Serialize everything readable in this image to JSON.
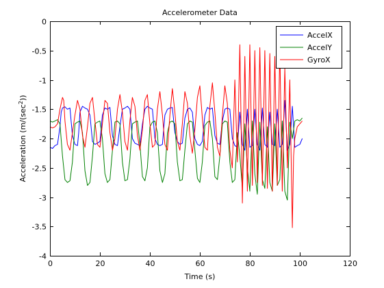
{
  "chart_data": {
    "type": "line",
    "title": "Accelerometer Data",
    "xlabel": "Time (s)",
    "ylabel_main": "Acceleration (m/(sec",
    "ylabel_sup": "2",
    "ylabel_end": "))",
    "xlim": [
      0,
      120
    ],
    "ylim": [
      -4,
      0
    ],
    "xticks": [
      0,
      20,
      40,
      60,
      80,
      100,
      120
    ],
    "yticks": [
      0,
      -0.5,
      -1,
      -1.5,
      -2,
      -2.5,
      -3,
      -3.5,
      -4
    ],
    "ytick_labels": [
      "0",
      "-0.5",
      "-1",
      "-1.5",
      "-2",
      "-2.5",
      "-3",
      "-3.5",
      "-4"
    ],
    "grid": false,
    "legend_position": "top-right",
    "series": [
      {
        "name": "AccelX",
        "color": "#0000ff",
        "x": [
          0.0,
          1.0,
          2.0,
          3.0,
          4.0,
          4.5,
          5.0,
          6.0,
          7.0,
          8.0,
          9.0,
          10.0,
          11.0,
          11.5,
          12.0,
          13.0,
          14.0,
          15.0,
          16.0,
          17.0,
          18.0,
          19.0,
          20.0,
          21.0,
          22.0,
          23.0,
          24.0,
          25.0,
          26.0,
          27.0,
          28.0,
          29.0,
          30.0,
          31.0,
          32.0,
          33.0,
          34.0,
          35.0,
          36.0,
          37.0,
          38.0,
          39.0,
          40.0,
          41.0,
          42.0,
          43.0,
          44.0,
          45.0,
          46.0,
          47.0,
          48.0,
          49.0,
          50.0,
          51.0,
          52.0,
          53.0,
          54.0,
          55.0,
          56.0,
          57.0,
          58.0,
          59.0,
          60.0,
          61.0,
          62.0,
          63.0,
          64.0,
          65.0,
          66.0,
          67.0,
          68.0,
          69.0,
          70.0,
          71.0,
          72.0,
          73.0,
          74.0,
          75.0,
          76.0,
          77.0,
          78.0,
          79.0,
          80.0,
          81.0,
          82.0,
          83.0,
          84.0,
          85.0,
          86.0,
          87.0,
          88.0,
          89.0,
          90.0,
          91.0,
          92.0,
          93.0,
          94.0,
          95.0,
          96.0,
          97.0,
          98.0,
          99.0,
          100.0,
          101.0
        ],
        "y": [
          -2.15,
          -2.17,
          -2.12,
          -2.1,
          -1.8,
          -1.55,
          -1.48,
          -1.46,
          -1.5,
          -1.48,
          -1.95,
          -2.1,
          -2.12,
          -1.9,
          -1.55,
          -1.45,
          -1.48,
          -1.5,
          -1.6,
          -2.05,
          -2.1,
          -2.08,
          -2.05,
          -1.6,
          -1.48,
          -1.5,
          -1.47,
          -1.95,
          -2.1,
          -2.12,
          -1.8,
          -1.5,
          -1.48,
          -1.45,
          -1.5,
          -2.0,
          -2.08,
          -2.1,
          -2.12,
          -1.75,
          -1.5,
          -1.45,
          -1.48,
          -1.5,
          -2.0,
          -2.1,
          -2.12,
          -2.1,
          -1.6,
          -1.5,
          -1.48,
          -1.47,
          -1.9,
          -2.05,
          -2.1,
          -2.08,
          -1.65,
          -1.5,
          -1.48,
          -1.55,
          -2.0,
          -2.1,
          -2.12,
          -2.05,
          -1.6,
          -1.47,
          -1.5,
          -1.48,
          -1.95,
          -2.08,
          -2.1,
          -1.7,
          -1.5,
          -1.48,
          -1.5,
          -2.0,
          -2.12,
          -2.15,
          -1.55,
          -2.1,
          -2.2,
          -1.5,
          -2.15,
          -2.12,
          -1.5,
          -2.1,
          -2.2,
          -1.48,
          -2.1,
          -2.15,
          -1.55,
          -2.1,
          -2.12,
          -1.5,
          -2.15,
          -2.1,
          -1.35,
          -2.2,
          -2.1,
          -1.45,
          -2.15,
          -2.12,
          -2.1,
          -2.0
        ],
        "note_hint": null
      },
      {
        "name": "AccelY",
        "color": "#008000",
        "x": [
          0.0,
          1.0,
          2.0,
          3.0,
          4.0,
          5.0,
          6.0,
          7.0,
          8.0,
          9.0,
          10.0,
          11.0,
          12.0,
          13.0,
          14.0,
          15.0,
          16.0,
          17.0,
          18.0,
          19.0,
          20.0,
          21.0,
          22.0,
          23.0,
          24.0,
          25.0,
          26.0,
          27.0,
          28.0,
          29.0,
          30.0,
          31.0,
          32.0,
          33.0,
          34.0,
          35.0,
          36.0,
          37.0,
          38.0,
          39.0,
          40.0,
          41.0,
          42.0,
          43.0,
          44.0,
          45.0,
          46.0,
          47.0,
          48.0,
          49.0,
          50.0,
          51.0,
          52.0,
          53.0,
          54.0,
          55.0,
          56.0,
          57.0,
          58.0,
          59.0,
          60.0,
          61.0,
          62.0,
          63.0,
          64.0,
          65.0,
          66.0,
          67.0,
          68.0,
          69.0,
          70.0,
          71.0,
          72.0,
          73.0,
          74.0,
          75.0,
          76.0,
          77.0,
          78.0,
          79.0,
          80.0,
          81.0,
          82.0,
          83.0,
          84.0,
          85.0,
          86.0,
          87.0,
          88.0,
          89.0,
          90.0,
          91.0,
          92.0,
          93.0,
          94.0,
          95.0,
          96.0,
          97.0,
          98.0,
          99.0,
          100.0,
          101.0
        ],
        "y": [
          -1.7,
          -1.72,
          -1.7,
          -1.68,
          -1.75,
          -2.3,
          -2.7,
          -2.75,
          -2.72,
          -2.4,
          -1.75,
          -1.72,
          -1.7,
          -1.9,
          -2.55,
          -2.8,
          -2.75,
          -2.3,
          -1.75,
          -1.72,
          -1.7,
          -2.0,
          -2.6,
          -2.75,
          -2.7,
          -2.2,
          -1.72,
          -1.7,
          -1.75,
          -2.4,
          -2.72,
          -2.7,
          -2.35,
          -1.75,
          -1.72,
          -1.7,
          -2.1,
          -2.65,
          -2.72,
          -2.5,
          -1.8,
          -1.72,
          -1.7,
          -1.9,
          -2.55,
          -2.75,
          -2.6,
          -1.9,
          -1.72,
          -1.7,
          -1.75,
          -2.4,
          -2.72,
          -2.7,
          -2.2,
          -1.75,
          -1.7,
          -1.72,
          -2.2,
          -2.68,
          -2.75,
          -2.4,
          -1.78,
          -1.72,
          -1.7,
          -2.0,
          -2.65,
          -2.7,
          -2.3,
          -1.75,
          -1.7,
          -1.72,
          -2.4,
          -2.75,
          -2.7,
          -1.9,
          -2.3,
          -2.85,
          -1.75,
          -2.5,
          -2.9,
          -1.7,
          -2.6,
          -2.95,
          -1.72,
          -2.7,
          -2.85,
          -1.8,
          -2.75,
          -2.9,
          -1.75,
          -2.8,
          -2.7,
          -1.7,
          -2.9,
          -3.05,
          -1.72,
          -2.0,
          -1.7,
          -1.68,
          -1.7,
          -1.65
        ],
        "note_hint": null
      },
      {
        "name": "GyroX",
        "color": "#ff0000",
        "x": [
          0.0,
          1.0,
          2.0,
          3.0,
          4.0,
          5.0,
          5.5,
          6.0,
          7.0,
          8.0,
          9.0,
          10.0,
          11.0,
          12.0,
          13.0,
          14.0,
          15.0,
          16.0,
          17.0,
          18.0,
          19.0,
          20.0,
          21.0,
          22.0,
          23.0,
          24.0,
          25.0,
          26.0,
          27.0,
          28.0,
          29.0,
          30.0,
          31.0,
          32.0,
          33.0,
          34.0,
          35.0,
          36.0,
          37.0,
          38.0,
          39.0,
          40.0,
          41.0,
          42.0,
          43.0,
          44.0,
          45.0,
          46.0,
          47.0,
          48.0,
          49.0,
          50.0,
          51.0,
          52.0,
          53.0,
          54.0,
          55.0,
          56.0,
          57.0,
          58.0,
          59.0,
          60.0,
          61.0,
          62.0,
          63.0,
          64.0,
          65.0,
          66.0,
          67.0,
          68.0,
          69.0,
          70.0,
          71.0,
          72.0,
          73.0,
          74.0,
          75.0,
          76.0,
          77.0,
          78.0,
          79.0,
          80.0,
          81.0,
          82.0,
          83.0,
          84.0,
          85.0,
          86.0,
          87.0,
          88.0,
          89.0,
          90.0,
          91.0,
          92.0,
          93.0,
          94.0,
          95.0,
          96.0,
          97.0,
          97.5,
          98.0,
          99.0,
          100.0,
          101.0
        ],
        "y": [
          -1.8,
          -1.82,
          -1.8,
          -1.75,
          -1.5,
          -1.3,
          -1.35,
          -1.7,
          -2.1,
          -2.2,
          -1.9,
          -1.6,
          -1.35,
          -1.5,
          -1.95,
          -2.15,
          -1.8,
          -1.4,
          -1.3,
          -1.7,
          -2.1,
          -2.15,
          -1.75,
          -1.35,
          -1.4,
          -1.9,
          -2.2,
          -2.0,
          -1.5,
          -1.25,
          -1.55,
          -2.05,
          -2.2,
          -1.7,
          -1.3,
          -1.45,
          -1.95,
          -2.2,
          -1.85,
          -1.35,
          -1.25,
          -1.75,
          -2.15,
          -2.1,
          -1.5,
          -1.2,
          -1.6,
          -2.1,
          -2.2,
          -1.6,
          -1.15,
          -1.55,
          -2.05,
          -2.2,
          -1.75,
          -1.2,
          -1.4,
          -1.95,
          -2.25,
          -1.85,
          -1.3,
          -1.1,
          -1.65,
          -2.15,
          -2.2,
          -1.45,
          -1.05,
          -1.55,
          -2.15,
          -2.3,
          -1.6,
          -1.1,
          -1.4,
          -2.2,
          -2.5,
          -1.0,
          -2.4,
          -0.4,
          -3.1,
          -0.6,
          -2.9,
          -0.4,
          -2.8,
          -0.5,
          -2.75,
          -0.45,
          -2.8,
          -0.5,
          -2.85,
          -0.55,
          -2.9,
          -0.6,
          -2.8,
          -0.5,
          -2.9,
          -0.8,
          -2.5,
          -1.0,
          -3.52,
          -2.3,
          -2.0,
          -1.8,
          -1.75,
          -1.7
        ],
        "note_hint": null
      }
    ]
  }
}
